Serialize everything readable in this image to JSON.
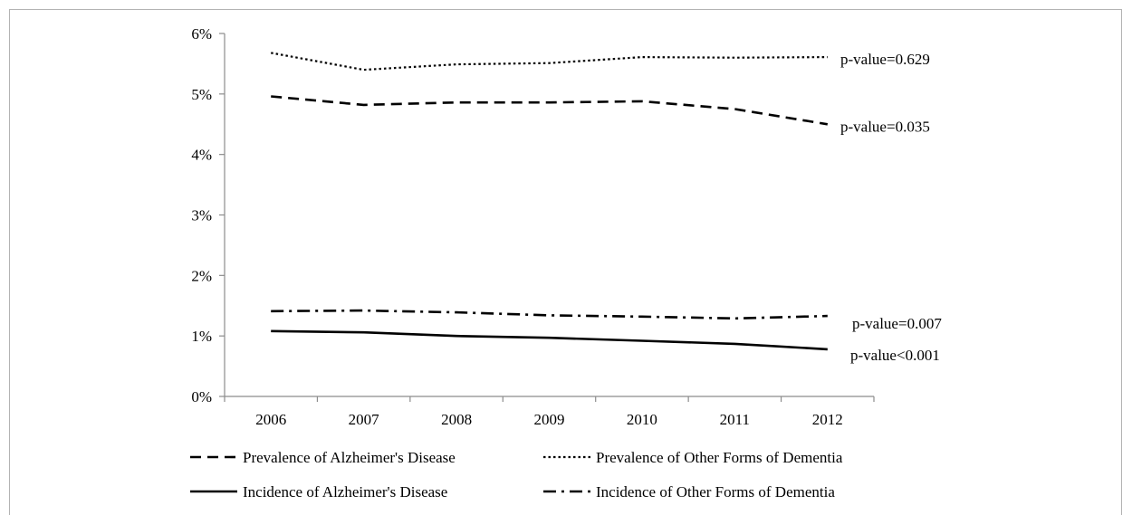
{
  "chart_data": {
    "type": "line",
    "title": "",
    "xlabel": "",
    "ylabel": "",
    "x": [
      "2006",
      "2007",
      "2008",
      "2009",
      "2010",
      "2011",
      "2012"
    ],
    "ylim": [
      0,
      6
    ],
    "y_ticks": [
      "0%",
      "1%",
      "2%",
      "3%",
      "4%",
      "5%",
      "6%"
    ],
    "grid": false,
    "legend_placement": "bottom",
    "series": [
      {
        "name": "Prevalence of Alzheimer's Disease",
        "style": "dashed",
        "values": [
          4.96,
          4.82,
          4.86,
          4.86,
          4.88,
          4.75,
          4.5
        ],
        "annotation": "p-value=0.035"
      },
      {
        "name": "Prevalence of Other Forms of Dementia",
        "style": "dotted",
        "values": [
          5.68,
          5.4,
          5.49,
          5.51,
          5.61,
          5.6,
          5.61
        ],
        "annotation": "p-value=0.629"
      },
      {
        "name": "Incidence of Alzheimer's Disease",
        "style": "solid",
        "values": [
          1.08,
          1.06,
          1.0,
          0.97,
          0.92,
          0.87,
          0.78
        ],
        "annotation": "p-value<0.001"
      },
      {
        "name": "Incidence of Other Forms of Dementia",
        "style": "dash-dot",
        "values": [
          1.41,
          1.42,
          1.39,
          1.34,
          1.32,
          1.29,
          1.33
        ],
        "annotation": "p-value=0.007"
      }
    ],
    "colors": {
      "line": "#000000",
      "axis": "#8c8c8c",
      "frame": "#b3b3b3"
    }
  }
}
